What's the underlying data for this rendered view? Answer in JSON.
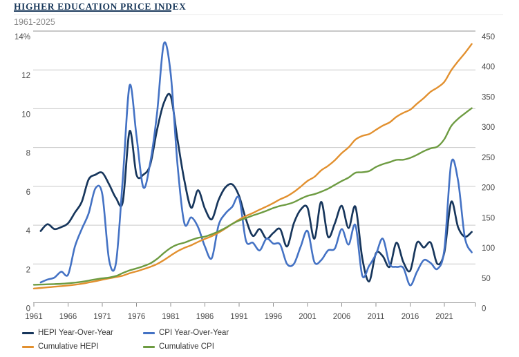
{
  "header": {
    "title": "HIGHER EDUCATION PRICE INDEX",
    "subtitle": "1961-2025"
  },
  "colors": {
    "hepi_yoy": "#17365c",
    "cpi_yoy": "#4472c4",
    "cum_hepi": "#e2902f",
    "cum_cpi": "#6d9b41",
    "grid_light": "#c9c9c9",
    "grid_dark": "#8f8f8f",
    "tick_text": "#4a4a4a",
    "title": "#1b3a5c",
    "subtitle": "#8a8a8a",
    "legend_text": "#3a3a3a"
  },
  "chart_data": {
    "type": "line",
    "title": "HIGHER EDUCATION PRICE INDEX",
    "subtitle": "1961-2025",
    "x": [
      1961,
      1962,
      1963,
      1964,
      1965,
      1966,
      1967,
      1968,
      1969,
      1970,
      1971,
      1972,
      1973,
      1974,
      1975,
      1976,
      1977,
      1978,
      1979,
      1980,
      1981,
      1982,
      1983,
      1984,
      1985,
      1986,
      1987,
      1988,
      1989,
      1990,
      1991,
      1992,
      1993,
      1994,
      1995,
      1996,
      1997,
      1998,
      1999,
      2000,
      2001,
      2002,
      2003,
      2004,
      2005,
      2006,
      2007,
      2008,
      2009,
      2010,
      2011,
      2012,
      2013,
      2014,
      2015,
      2016,
      2017,
      2018,
      2019,
      2020,
      2021,
      2022,
      2023,
      2024,
      2025
    ],
    "left_axis": {
      "min": 0,
      "max": 14,
      "tick_values": [
        14,
        12,
        10,
        8,
        6,
        4,
        2,
        0
      ],
      "tick_labels": [
        "14%",
        "12",
        "10",
        "8",
        "6",
        "4",
        "2",
        "0"
      ]
    },
    "right_axis": {
      "min": 0,
      "max": 450,
      "tick_values": [
        450,
        400,
        350,
        300,
        250,
        200,
        150,
        100,
        50,
        0
      ],
      "tick_labels": [
        "450",
        "400",
        "350",
        "300",
        "250",
        "200",
        "150",
        "100",
        "50",
        "0"
      ]
    },
    "x_ticks": {
      "values": [
        1961,
        1966,
        1971,
        1976,
        1981,
        1986,
        1991,
        1996,
        2001,
        2006,
        2011,
        2016,
        2021
      ],
      "labels": [
        "1961",
        "1966",
        "1971",
        "1976",
        "1981",
        "1986",
        "1991",
        "1996",
        "2001",
        "2006",
        "2011",
        "2016",
        "2021"
      ]
    },
    "series": [
      {
        "name": "HEPI Year-Over-Year",
        "color_key": "hepi_yoy",
        "axis": "left",
        "width": 2.7,
        "values": [
          null,
          3.7,
          4.05,
          3.8,
          3.9,
          4.1,
          4.65,
          5.2,
          6.35,
          6.6,
          6.7,
          6.1,
          5.4,
          5.2,
          8.85,
          6.6,
          6.6,
          7.1,
          8.9,
          10.3,
          10.65,
          8.4,
          6.3,
          4.9,
          5.8,
          4.85,
          4.3,
          5.3,
          5.95,
          6.1,
          5.5,
          4.3,
          3.45,
          3.8,
          3.3,
          3.6,
          3.8,
          2.9,
          4.1,
          4.8,
          4.9,
          3.3,
          5.2,
          3.4,
          4.1,
          5.0,
          3.85,
          4.95,
          2.3,
          1.1,
          2.55,
          2.4,
          1.85,
          3.1,
          2.1,
          1.65,
          3.1,
          2.85,
          3.1,
          2.0,
          2.6,
          5.2,
          3.9,
          3.4,
          3.65
        ]
      },
      {
        "name": "CPI Year-Over-Year",
        "color_key": "cpi_yoy",
        "axis": "left",
        "width": 2.6,
        "values": [
          null,
          1.05,
          1.2,
          1.3,
          1.6,
          1.45,
          2.9,
          3.8,
          4.6,
          5.9,
          5.6,
          2.2,
          2.05,
          6.4,
          11.2,
          8.6,
          5.95,
          7.2,
          9.75,
          13.35,
          11.8,
          7.1,
          4.1,
          4.4,
          3.9,
          2.9,
          2.3,
          4.0,
          4.6,
          4.95,
          5.4,
          3.2,
          3.1,
          2.7,
          3.3,
          3.05,
          3.0,
          2.0,
          2.0,
          2.9,
          3.7,
          2.1,
          2.2,
          2.7,
          2.8,
          3.8,
          3.0,
          4.0,
          1.4,
          1.9,
          2.5,
          3.3,
          2.0,
          1.85,
          1.8,
          0.9,
          1.6,
          2.2,
          2.05,
          1.75,
          2.75,
          7.2,
          6.3,
          3.35,
          2.6
        ]
      },
      {
        "name": "Cumulative HEPI",
        "color_key": "cum_hepi",
        "axis": "right",
        "width": 2.4,
        "values": [
          23.7,
          24.6,
          25.6,
          26.6,
          27.6,
          28.7,
          30.0,
          31.6,
          33.6,
          35.8,
          38.2,
          40.5,
          42.7,
          44.9,
          48.9,
          52.0,
          55.6,
          59.5,
          64.2,
          70.7,
          78.2,
          85.4,
          90.9,
          95.4,
          100.9,
          105.8,
          110.3,
          116.2,
          123.1,
          130.6,
          137.8,
          143.7,
          148.7,
          154.3,
          159.4,
          165.1,
          171.4,
          176.4,
          183.6,
          192.4,
          201.8,
          208.5,
          219.3,
          226.8,
          236.1,
          247.9,
          257.4,
          270.2,
          276.4,
          279.4,
          286.5,
          293.4,
          298.8,
          308.1,
          314.6,
          319.8,
          329.7,
          339.1,
          349.6,
          356.6,
          365.9,
          384.9,
          399.9,
          413.5,
          428.6
        ]
      },
      {
        "name": "Cumulative CPI",
        "color_key": "cum_cpi",
        "axis": "right",
        "width": 2.4,
        "values": [
          29.9,
          30.2,
          30.6,
          31.0,
          31.5,
          32.4,
          33.4,
          34.8,
          36.7,
          38.8,
          40.5,
          41.8,
          44.4,
          49.3,
          53.8,
          56.9,
          60.6,
          65.2,
          72.6,
          82.4,
          90.9,
          96.5,
          99.6,
          103.9,
          107.6,
          109.6,
          113.6,
          118.3,
          124.0,
          130.7,
          136.2,
          140.3,
          144.5,
          148.2,
          152.4,
          156.9,
          160.5,
          163.0,
          166.6,
          172.2,
          177.1,
          179.9,
          184.0,
          188.9,
          195.3,
          201.6,
          207.3,
          215.3,
          216.2,
          218.1,
          224.9,
          229.6,
          233.0,
          236.7,
          237.0,
          240.0,
          245.1,
          251.1,
          255.7,
          258.8,
          271.0,
          292.7,
          304.7,
          313.7,
          322.3
        ]
      }
    ],
    "legend": [
      {
        "label": "HEPI Year-Over-Year",
        "color_key": "hepi_yoy"
      },
      {
        "label": "CPI Year-Over-Year",
        "color_key": "cpi_yoy"
      },
      {
        "label": "Cumulative HEPI",
        "color_key": "cum_hepi"
      },
      {
        "label": "Cumulative CPI",
        "color_key": "cum_cpi"
      }
    ]
  }
}
